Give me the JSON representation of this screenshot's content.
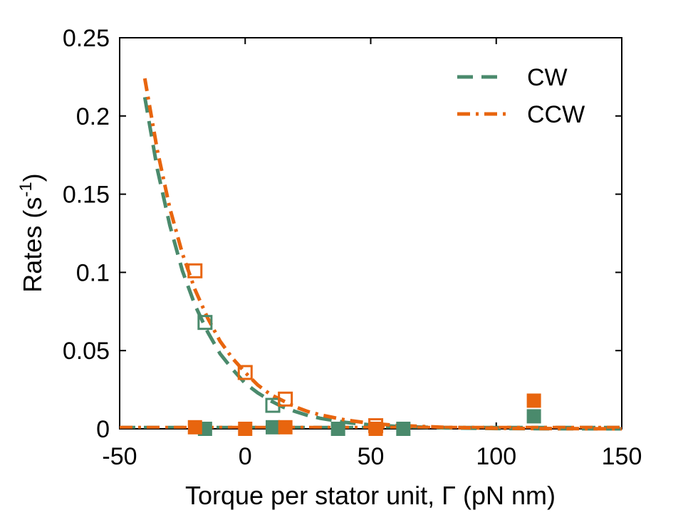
{
  "colors": {
    "cw": "#4a8a6c",
    "ccw": "#e8650e",
    "axis": "#000000",
    "background": "#ffffff"
  },
  "chart_data": {
    "type": "scatter",
    "xlabel": "Torque per stator unit, Γ (pN nm)",
    "ylabel_main": "Rates (s",
    "ylabel_exp": "-1",
    "ylabel_close": ")",
    "xlim": [
      -50,
      150
    ],
    "ylim": [
      0,
      0.25
    ],
    "xticks": [
      -50,
      0,
      50,
      100,
      150
    ],
    "xtick_labels": [
      "-50",
      "0",
      "50",
      "100",
      "150"
    ],
    "yticks": [
      0,
      0.05,
      0.1,
      0.15,
      0.2,
      0.25
    ],
    "ytick_labels": [
      "0",
      "0.05",
      "0.1",
      "0.15",
      "0.2",
      "0.25"
    ],
    "grid": false,
    "legend_position": "top-right",
    "series": [
      {
        "name": "CW",
        "color_key": "cw",
        "line_style": "dashed",
        "curve": [
          [
            -40,
            0.212
          ],
          [
            -35,
            0.166
          ],
          [
            -30,
            0.13
          ],
          [
            -25,
            0.101
          ],
          [
            -20,
            0.079
          ],
          [
            -15,
            0.062
          ],
          [
            -10,
            0.048
          ],
          [
            -5,
            0.038
          ],
          [
            0,
            0.029
          ],
          [
            5,
            0.023
          ],
          [
            10,
            0.018
          ],
          [
            15,
            0.014
          ],
          [
            20,
            0.011
          ],
          [
            25,
            0.0085
          ],
          [
            30,
            0.0067
          ],
          [
            40,
            0.0041
          ],
          [
            50,
            0.0025
          ],
          [
            60,
            0.0016
          ],
          [
            80,
            0.0006
          ],
          [
            100,
            0.0002
          ],
          [
            115,
            0.0001
          ],
          [
            150,
            0.0
          ]
        ],
        "open_markers": [
          [
            -16,
            0.068
          ],
          [
            11,
            0.015
          ]
        ],
        "filled_markers": [
          [
            -16,
            0.0
          ],
          [
            11,
            0.001
          ],
          [
            37,
            0.0
          ],
          [
            63,
            0.0
          ],
          [
            115,
            0.008
          ]
        ]
      },
      {
        "name": "CCW",
        "color_key": "ccw",
        "line_style": "dash-dot",
        "curve": [
          [
            -40,
            0.224
          ],
          [
            -35,
            0.178
          ],
          [
            -30,
            0.141
          ],
          [
            -25,
            0.112
          ],
          [
            -20,
            0.089
          ],
          [
            -15,
            0.071
          ],
          [
            -10,
            0.056
          ],
          [
            -5,
            0.045
          ],
          [
            0,
            0.036
          ],
          [
            5,
            0.028
          ],
          [
            10,
            0.022
          ],
          [
            15,
            0.018
          ],
          [
            20,
            0.014
          ],
          [
            25,
            0.011
          ],
          [
            30,
            0.0089
          ],
          [
            40,
            0.0056
          ],
          [
            50,
            0.0035
          ],
          [
            60,
            0.0022
          ],
          [
            80,
            0.0009
          ],
          [
            100,
            0.0003
          ],
          [
            115,
            0.0002
          ],
          [
            150,
            0.0
          ]
        ],
        "open_markers": [
          [
            -20,
            0.101
          ],
          [
            0,
            0.036
          ],
          [
            16,
            0.019
          ],
          [
            52,
            0.002
          ]
        ],
        "filled_markers": [
          [
            -20,
            0.001
          ],
          [
            0,
            0.0
          ],
          [
            16,
            0.001
          ],
          [
            52,
            0.0
          ],
          [
            115,
            0.018
          ]
        ]
      }
    ],
    "baseline_value": 0.001
  }
}
